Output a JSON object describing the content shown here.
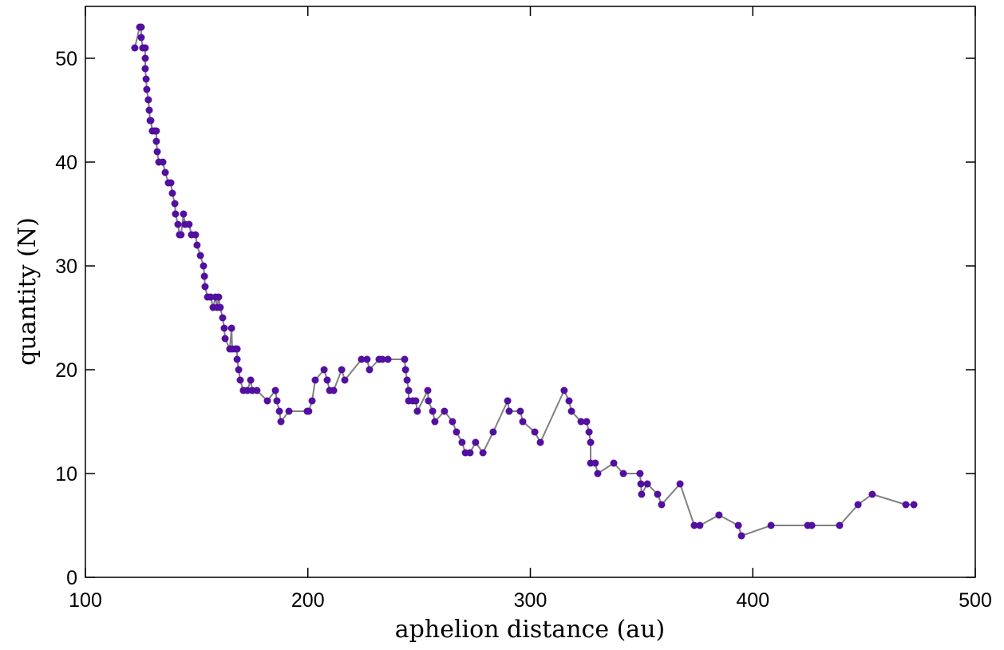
{
  "chart_data": {
    "type": "line",
    "xlabel": "aphelion distance (au)",
    "ylabel": "quantity (N)",
    "x": [
      122.2,
      124.4,
      125.1,
      125.1,
      125.8,
      126.9,
      126.9,
      126.9,
      127.3,
      127.6,
      128.3,
      128.7,
      129.1,
      129.4,
      130.1,
      131.2,
      131.9,
      131.9,
      132.3,
      133.0,
      134.8,
      135.9,
      137.3,
      138.4,
      139.1,
      140.2,
      140.5,
      141.6,
      142.3,
      143.0,
      144.1,
      144.8,
      146.6,
      147.7,
      149.5,
      150.2,
      151.7,
      153.1,
      153.5,
      153.8,
      154.9,
      156.3,
      157.4,
      158.5,
      159.2,
      159.9,
      160.6,
      161.7,
      162.4,
      162.8,
      164.9,
      165.7,
      166.0,
      167.4,
      168.2,
      168.2,
      168.9,
      169.6,
      171.0,
      172.8,
      174.3,
      175.0,
      177.1,
      181.8,
      185.4,
      186.1,
      187.2,
      187.9,
      191.5,
      199.7,
      200.4,
      201.9,
      203.3,
      207.3,
      208.7,
      209.8,
      211.6,
      215.2,
      216.6,
      224.1,
      226.6,
      227.7,
      232.0,
      233.5,
      236.0,
      243.5,
      243.9,
      244.6,
      245.3,
      245.3,
      247.1,
      248.5,
      249.2,
      253.9,
      254.2,
      256.1,
      257.1,
      261.4,
      265.0,
      266.8,
      269.3,
      270.8,
      272.9,
      275.4,
      278.7,
      283.3,
      289.8,
      290.5,
      295.5,
      296.6,
      302.0,
      304.5,
      315.2,
      317.4,
      318.5,
      322.8,
      325.3,
      326.4,
      327.1,
      327.1,
      329.2,
      330.3,
      337.5,
      341.8,
      349.3,
      349.7,
      350.0,
      352.6,
      357.2,
      359.0,
      367.3,
      373.7,
      376.2,
      384.8,
      393.5,
      394.9,
      408.2,
      424.7,
      426.5,
      439.0,
      447.3,
      453.7,
      468.8,
      472.4
    ],
    "series": [
      {
        "color": "#520fa0",
        "line_color": "#808080",
        "values": [
          51,
          53,
          53,
          52,
          51,
          51,
          50,
          49,
          48,
          47,
          46,
          45,
          44,
          44,
          43,
          43,
          43,
          42,
          41,
          40,
          40,
          39,
          38,
          38,
          37,
          36,
          35,
          34,
          33,
          33,
          35,
          34,
          34,
          33,
          33,
          32,
          31,
          30,
          29,
          28,
          27,
          27,
          26,
          27,
          26,
          27,
          26,
          25,
          24,
          23,
          22,
          24,
          22,
          22,
          22,
          21,
          20,
          19,
          18,
          18,
          19,
          18,
          18,
          17,
          18,
          17,
          16,
          15,
          16,
          16,
          16,
          17,
          19,
          20,
          19,
          18,
          18,
          20,
          19,
          21,
          21,
          20,
          21,
          21,
          21,
          21,
          20,
          19,
          18,
          17,
          17,
          17,
          16,
          18,
          17,
          16,
          15,
          16,
          15,
          14,
          13,
          12,
          12,
          13,
          12,
          14,
          17,
          16,
          16,
          15,
          14,
          13,
          18,
          17,
          16,
          15,
          15,
          14,
          13,
          11,
          11,
          10,
          11,
          10,
          10,
          9,
          8,
          9,
          8,
          7,
          9,
          5,
          5,
          6,
          5,
          4,
          5,
          5,
          5,
          5,
          7,
          8,
          7,
          7
        ]
      }
    ],
    "xlim": [
      100,
      500
    ],
    "xticks": [
      100,
      200,
      300,
      400,
      500
    ],
    "ylim": [
      0,
      55
    ],
    "yticks": [
      0,
      10,
      20,
      30,
      40,
      50
    ]
  }
}
